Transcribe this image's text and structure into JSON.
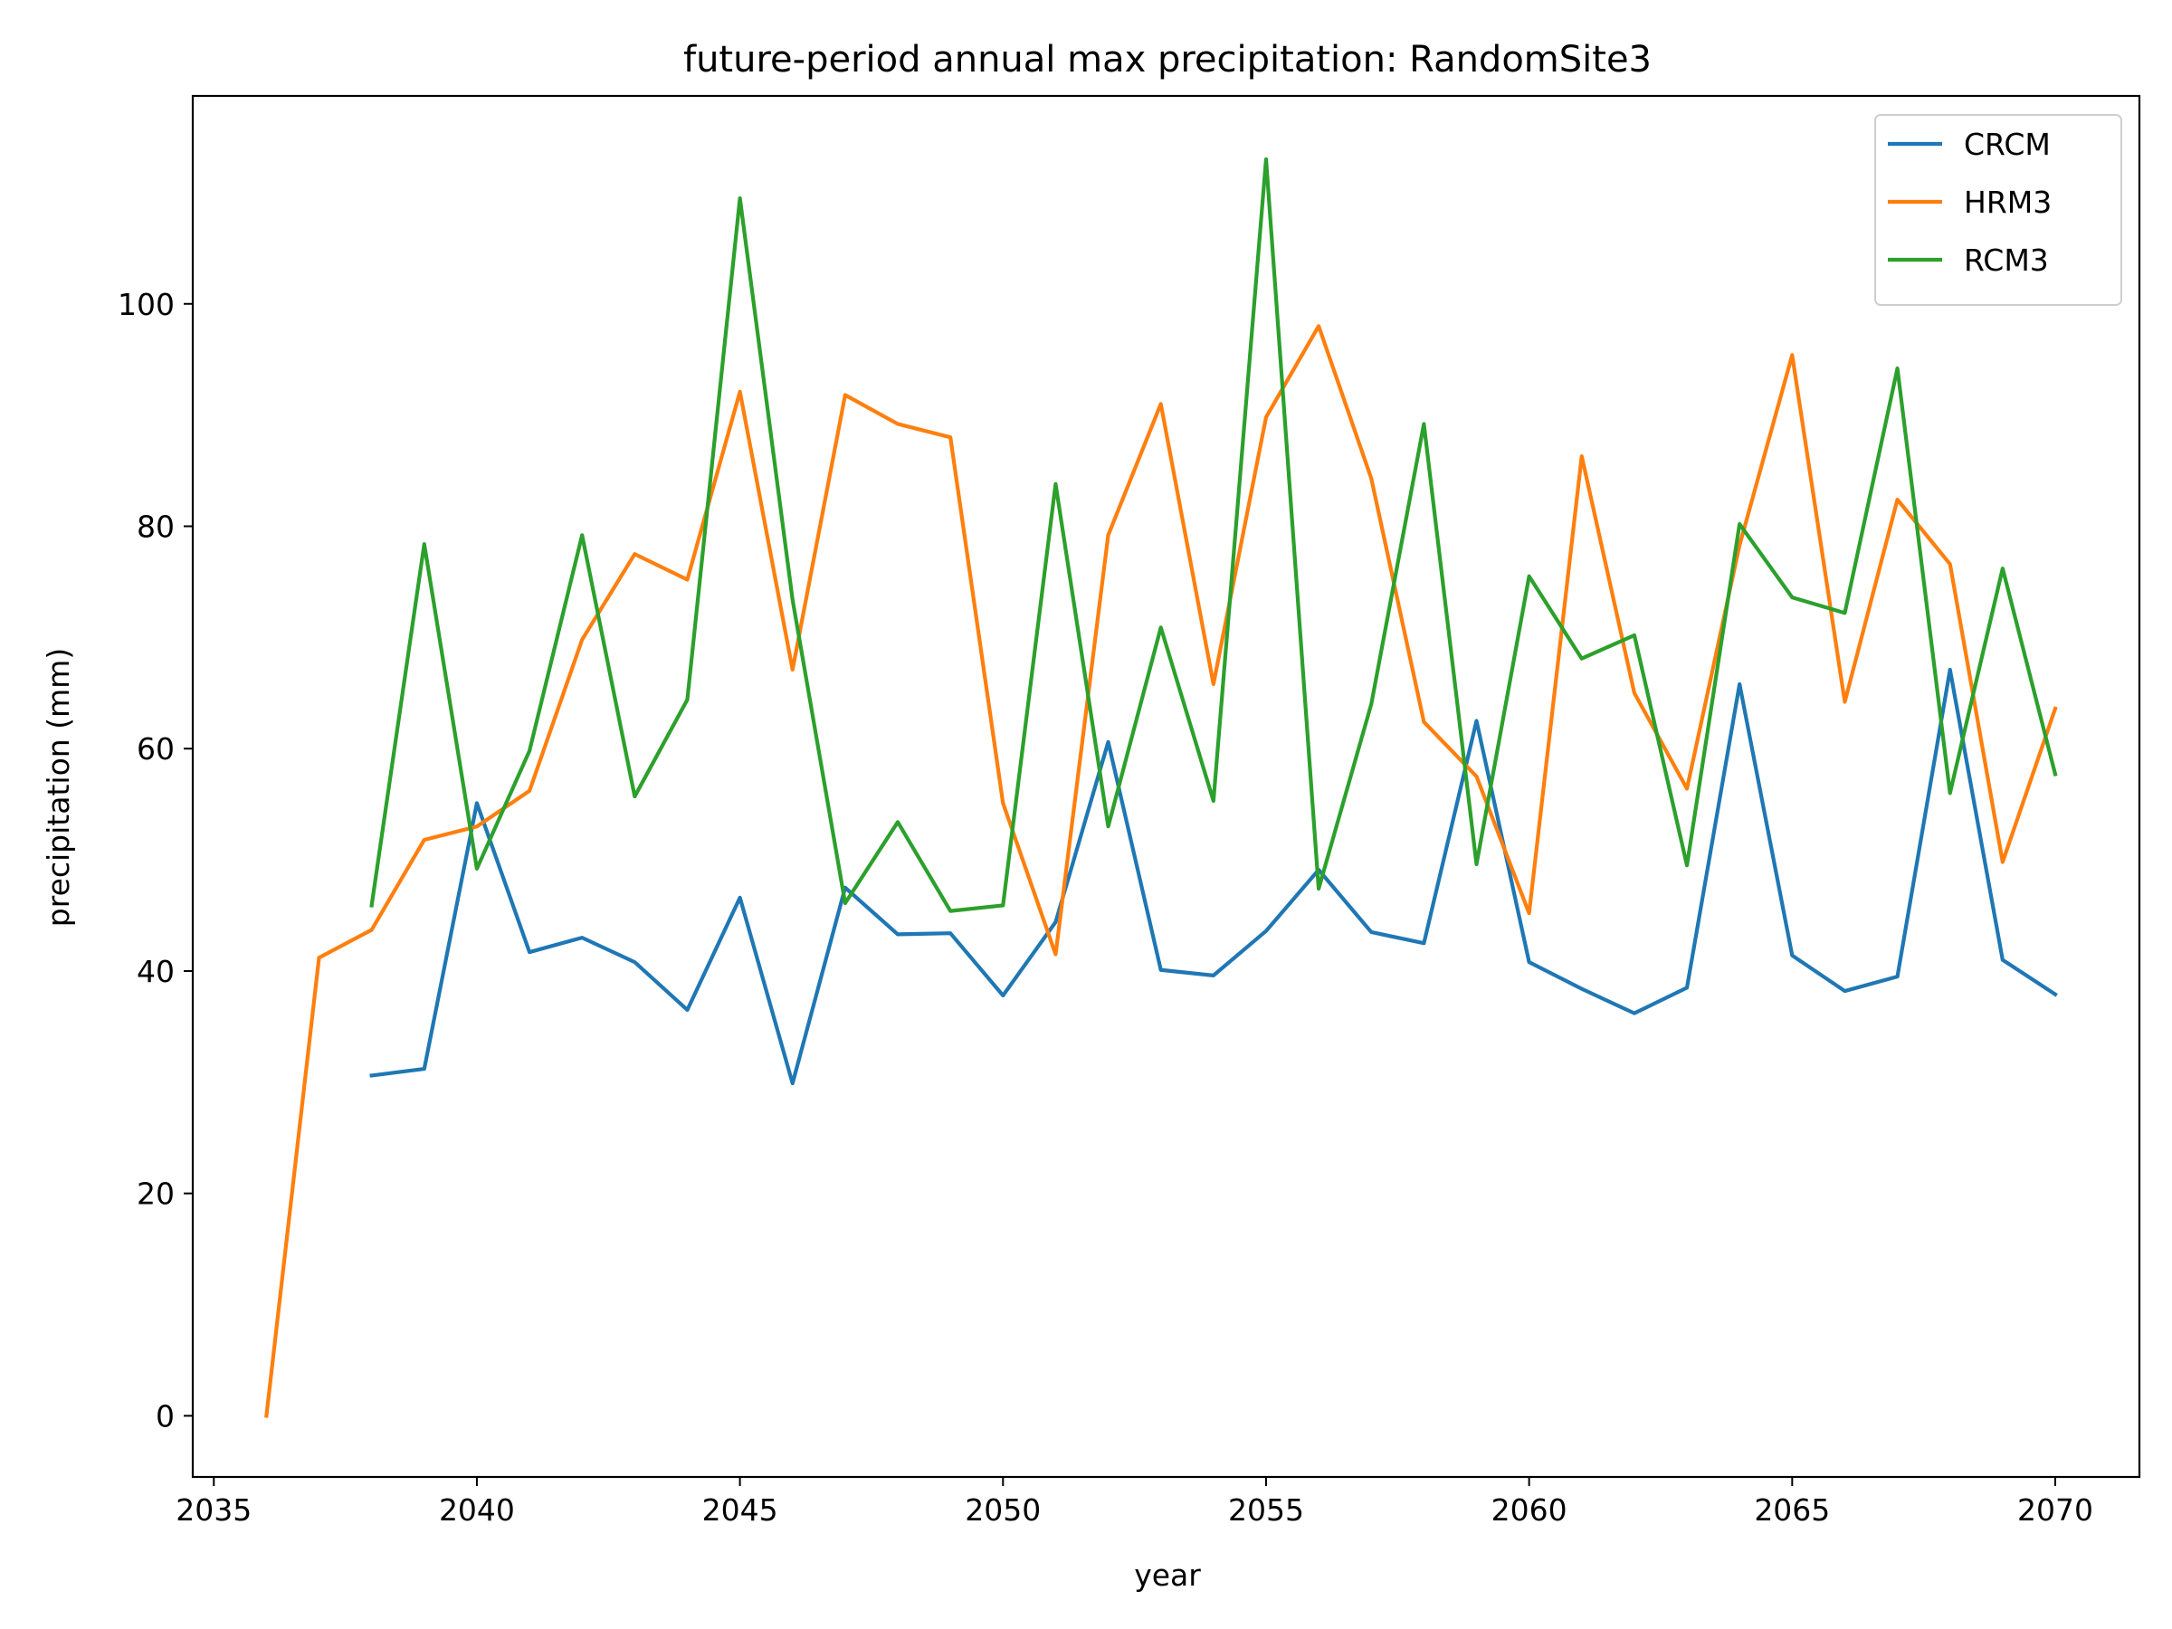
{
  "chart_data": {
    "type": "line",
    "title": "future-period annual max precipitation: RandomSite3",
    "xlabel": "year",
    "ylabel": "precipitation (mm)",
    "xlim": [
      2034.6,
      2071.6
    ],
    "ylim": [
      -5.5,
      118.7
    ],
    "xticks": [
      2035,
      2040,
      2045,
      2050,
      2055,
      2060,
      2065,
      2070
    ],
    "yticks": [
      0,
      20,
      40,
      60,
      80,
      100
    ],
    "grid": false,
    "legend_position": "top-right",
    "series": [
      {
        "name": "CRCM",
        "color": "#1f77b4",
        "x": [
          2038,
          2039,
          2040,
          2041,
          2042,
          2043,
          2044,
          2045,
          2046,
          2047,
          2048,
          2049,
          2050,
          2051,
          2052,
          2053,
          2054,
          2055,
          2056,
          2057,
          2058,
          2059,
          2060,
          2061,
          2062,
          2063,
          2064,
          2065,
          2066,
          2067,
          2068,
          2069,
          2070
        ],
        "y": [
          30.6,
          31.2,
          55.1,
          41.7,
          43.0,
          40.8,
          36.5,
          46.6,
          29.9,
          47.5,
          43.3,
          43.4,
          37.8,
          44.4,
          60.6,
          40.1,
          39.6,
          43.6,
          49.1,
          43.5,
          42.5,
          62.5,
          40.8,
          38.4,
          36.2,
          38.5,
          65.8,
          41.4,
          38.2,
          39.5,
          67.1,
          41.0,
          37.9
        ]
      },
      {
        "name": "HRM3",
        "color": "#ff7f0e",
        "x": [
          2036,
          2037,
          2038,
          2039,
          2040,
          2041,
          2042,
          2043,
          2044,
          2045,
          2046,
          2047,
          2048,
          2049,
          2050,
          2051,
          2052,
          2053,
          2054,
          2055,
          2056,
          2057,
          2058,
          2059,
          2060,
          2061,
          2062,
          2063,
          2064,
          2065,
          2066,
          2067,
          2068,
          2069,
          2070
        ],
        "y": [
          0.0,
          41.2,
          43.7,
          51.8,
          53.0,
          56.2,
          69.8,
          77.5,
          75.2,
          92.1,
          67.1,
          91.8,
          89.2,
          88.0,
          55.1,
          41.5,
          79.2,
          91.0,
          65.8,
          89.8,
          98.0,
          84.3,
          62.4,
          57.5,
          45.2,
          86.3,
          65.0,
          56.4,
          78.3,
          95.4,
          64.2,
          82.4,
          76.6,
          49.8,
          63.6
        ]
      },
      {
        "name": "RCM3",
        "color": "#2ca02c",
        "x": [
          2038,
          2039,
          2040,
          2041,
          2042,
          2043,
          2044,
          2045,
          2046,
          2047,
          2048,
          2049,
          2050,
          2051,
          2052,
          2053,
          2054,
          2055,
          2056,
          2057,
          2058,
          2059,
          2060,
          2061,
          2062,
          2063,
          2064,
          2065,
          2066,
          2067,
          2068,
          2069,
          2070
        ],
        "y": [
          45.9,
          78.4,
          49.2,
          59.8,
          79.2,
          55.7,
          64.4,
          109.5,
          73.4,
          46.1,
          53.4,
          45.4,
          45.9,
          83.8,
          53.0,
          70.9,
          55.3,
          113.0,
          47.4,
          64.0,
          89.2,
          49.6,
          75.5,
          68.1,
          70.2,
          49.5,
          80.2,
          73.6,
          72.2,
          94.2,
          56.0,
          76.2,
          57.7
        ]
      }
    ]
  }
}
